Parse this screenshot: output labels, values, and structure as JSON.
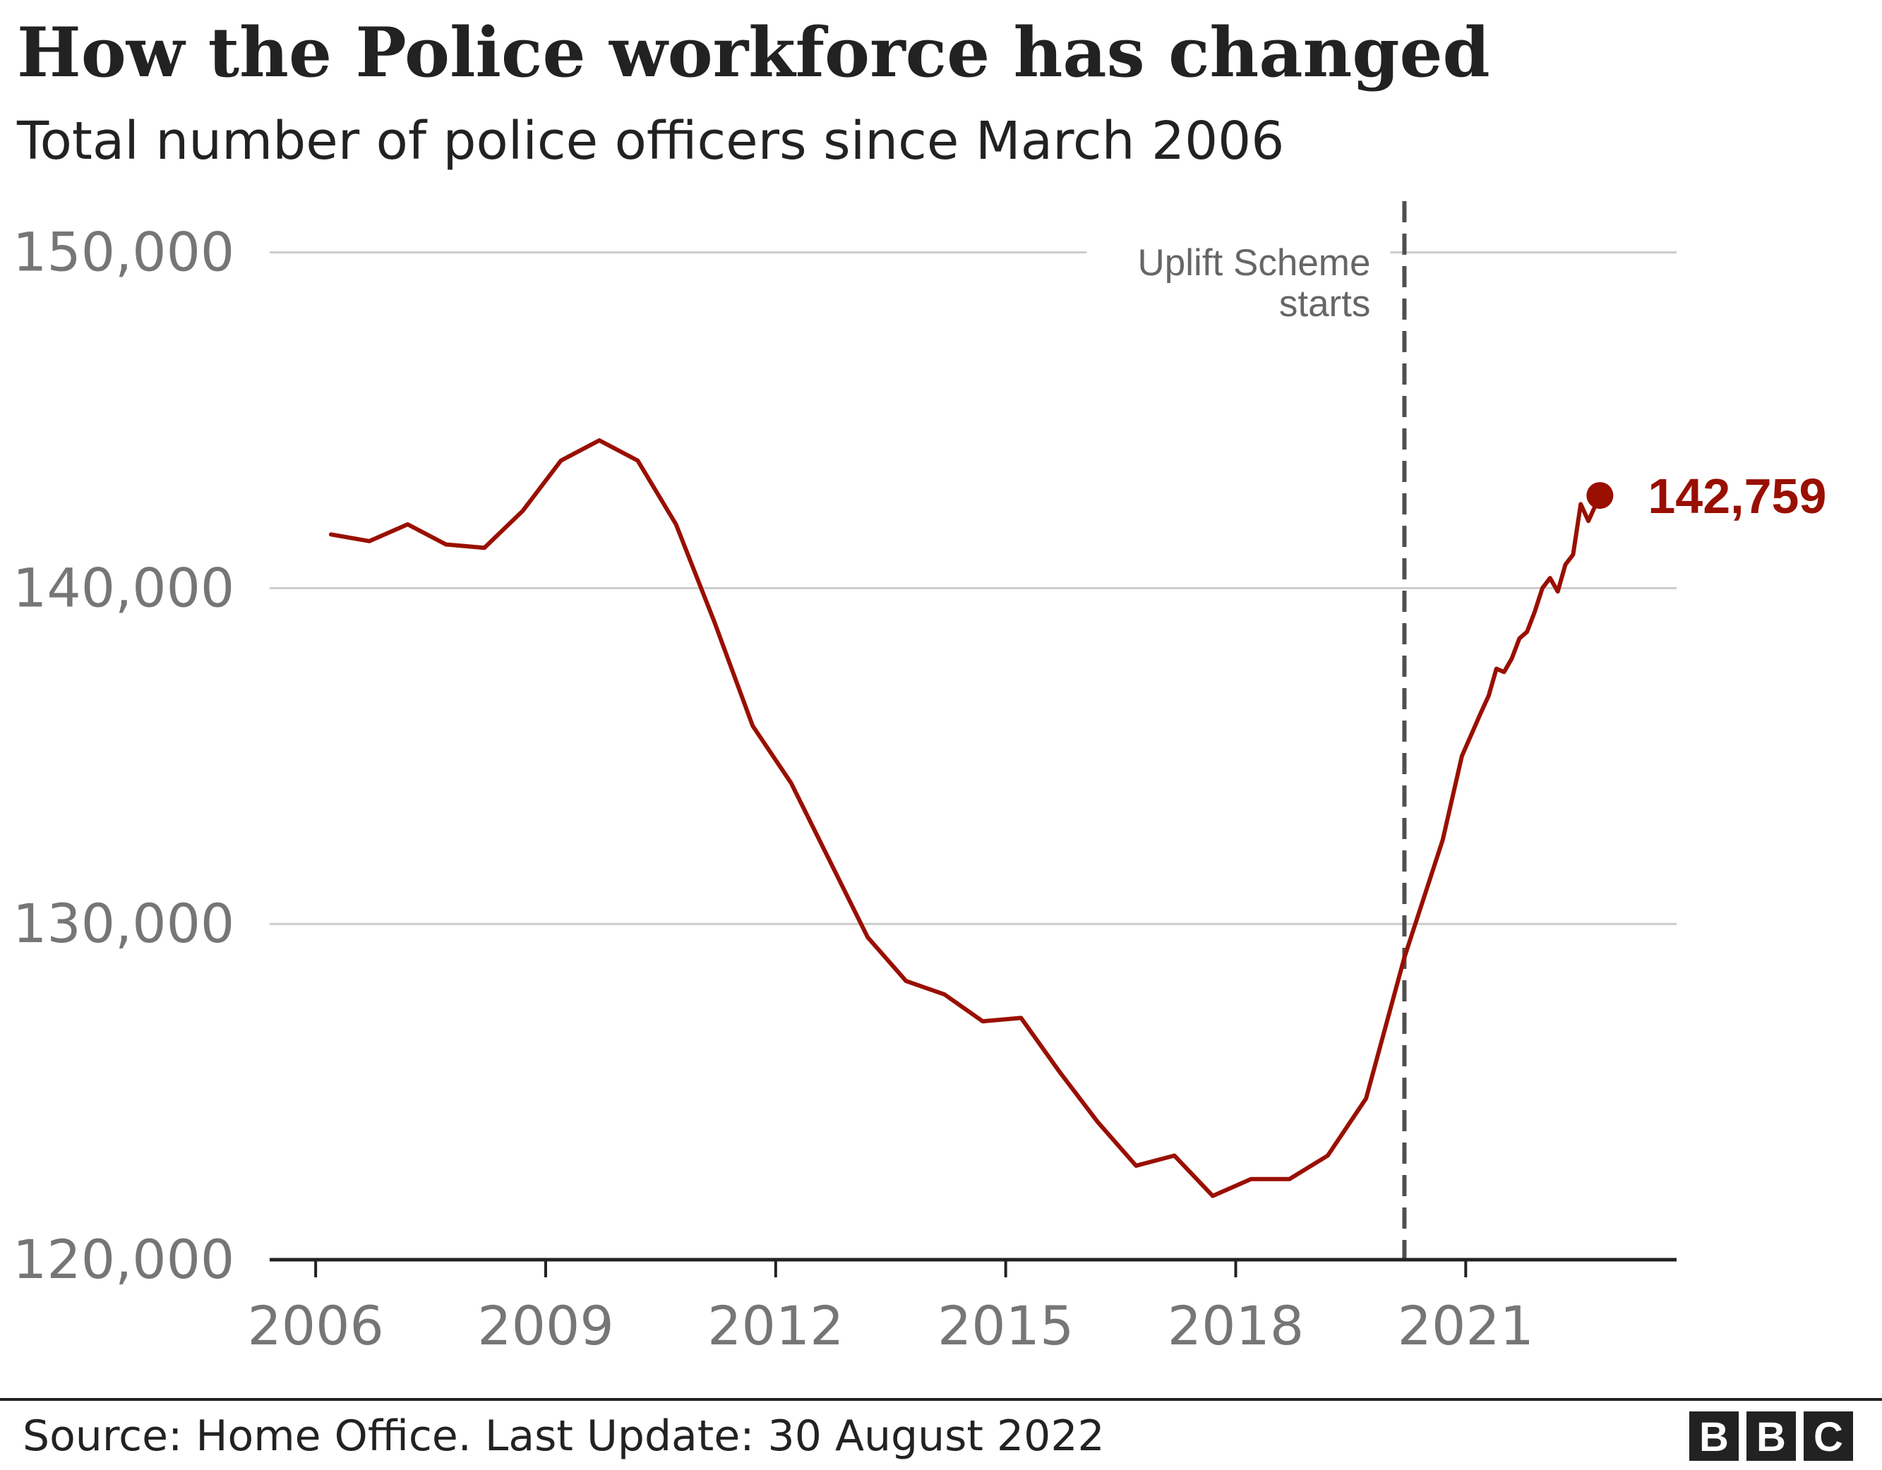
{
  "title": "How the Police workforce has changed",
  "subtitle": "Total number of police officers since March 2006",
  "source": "Source: Home Office. Last Update: 30 August 2022",
  "logo": {
    "letters": [
      "B",
      "B",
      "C"
    ]
  },
  "colors": {
    "line": "#990f00",
    "grid": "#cccccc",
    "axis": "#222222",
    "tick_text": "#767676",
    "annotation_line": "#505050",
    "annotation_text": "#666666"
  },
  "chart_data": {
    "type": "line",
    "title": "How the Police workforce has changed",
    "subtitle": "Total number of police officers since March 2006",
    "xlim": [
      2005.4,
      2023.75
    ],
    "ylim": [
      120000,
      151000
    ],
    "x_ticks": [
      2006,
      2009,
      2012,
      2015,
      2018,
      2021
    ],
    "x_tick_labels": [
      "2006",
      "2009",
      "2012",
      "2015",
      "2018",
      "2021"
    ],
    "y_ticks": [
      120000,
      130000,
      140000,
      150000
    ],
    "y_tick_labels": [
      "120,000",
      "130,000",
      "140,000",
      "150,000"
    ],
    "grid": true,
    "series": [
      {
        "name": "",
        "x": [
          2006.2,
          2006.7,
          2007.2,
          2007.7,
          2008.2,
          2008.7,
          2009.2,
          2009.7,
          2010.2,
          2010.7,
          2011.2,
          2011.7,
          2012.2,
          2012.7,
          2013.2,
          2013.7,
          2014.2,
          2014.7,
          2015.2,
          2015.7,
          2016.2,
          2016.7,
          2017.2,
          2017.7,
          2018.2,
          2018.7,
          2019.2,
          2019.7,
          2020.2,
          2020.7,
          2020.95,
          2021.2,
          2021.3,
          2021.4,
          2021.5,
          2021.6,
          2021.7,
          2021.8,
          2021.9,
          2022.0,
          2022.1,
          2022.2,
          2022.3,
          2022.4,
          2022.5,
          2022.6
        ],
        "values": [
          141600,
          141400,
          141900,
          141300,
          141200,
          142300,
          143800,
          144400,
          143800,
          141900,
          139000,
          135900,
          134200,
          131900,
          129600,
          128300,
          127900,
          127100,
          127200,
          125600,
          124100,
          122800,
          123100,
          121900,
          122400,
          122400,
          123100,
          124800,
          129000,
          132500,
          135000,
          136300,
          136800,
          137600,
          137500,
          137900,
          138500,
          138700,
          139300,
          140000,
          140300,
          139900,
          140700,
          141000,
          142500,
          142000
        ]
      }
    ],
    "end_point": {
      "x": 2022.75,
      "value": 142759,
      "label": "142,759"
    },
    "annotation": {
      "x": 2020.2,
      "text_lines": [
        "Uplift Scheme",
        "starts"
      ]
    }
  }
}
